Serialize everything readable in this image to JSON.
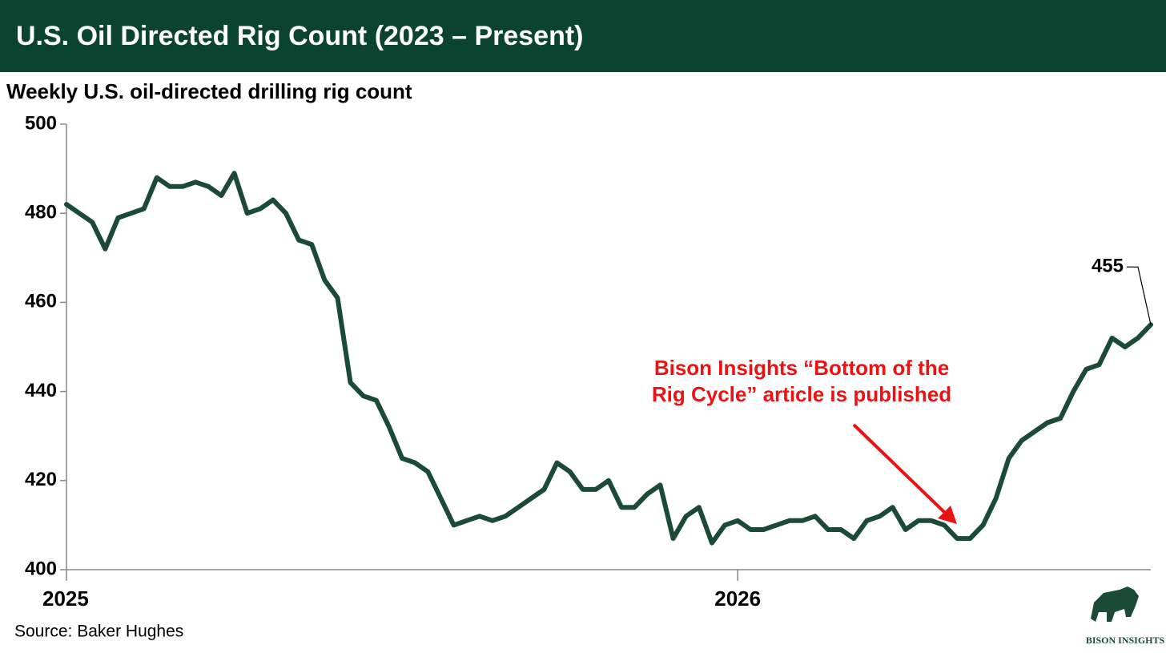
{
  "chart_data": {
    "type": "line",
    "title": "U.S. Oil Directed Rig Count (2023 – Present)",
    "subtitle": "Weekly U.S. oil-directed drilling rig count",
    "source": "Source: Baker Hughes",
    "logo": "BISON INSIGHTS",
    "annotation": [
      "Bison Insights “Bottom of the",
      "Rig Cycle” article is published"
    ],
    "annotation_color": "#ee1111",
    "categories": [
      "2025",
      null,
      null,
      null,
      null,
      null,
      null,
      null,
      null,
      null,
      null,
      null,
      null,
      null,
      null,
      null,
      null,
      null,
      null,
      null,
      null,
      null,
      null,
      null,
      null,
      null,
      null,
      null,
      null,
      null,
      null,
      null,
      null,
      null,
      null,
      null,
      null,
      null,
      null,
      null,
      null,
      null,
      null,
      null,
      null,
      null,
      null,
      null,
      null,
      null,
      null,
      null,
      "2026",
      null,
      null,
      null,
      null,
      null,
      null,
      null,
      null,
      null,
      null,
      null,
      null,
      null,
      null,
      null,
      null,
      null,
      null,
      null,
      null,
      null,
      null,
      null,
      null,
      null,
      null,
      null,
      null,
      null,
      null,
      null,
      null
    ],
    "values": [
      482,
      480,
      478,
      472,
      479,
      480,
      481,
      488,
      486,
      486,
      487,
      486,
      484,
      489,
      480,
      481,
      483,
      480,
      474,
      473,
      465,
      461,
      442,
      439,
      438,
      432,
      425,
      424,
      422,
      416,
      410,
      411,
      412,
      411,
      412,
      414,
      416,
      418,
      424,
      422,
      418,
      418,
      420,
      414,
      414,
      417,
      419,
      407,
      412,
      414,
      406,
      410,
      411,
      409,
      409,
      410,
      411,
      411,
      412,
      409,
      409,
      407,
      411,
      412,
      414,
      409,
      411,
      411,
      410,
      407,
      407,
      410,
      416,
      425,
      429,
      431,
      433,
      434,
      440,
      445,
      446,
      452,
      450,
      452,
      455
    ],
    "color": "#1b4a37",
    "ylim": [
      400,
      500
    ],
    "yticks": [
      400,
      420,
      440,
      460,
      480,
      500
    ],
    "grid": false
  }
}
